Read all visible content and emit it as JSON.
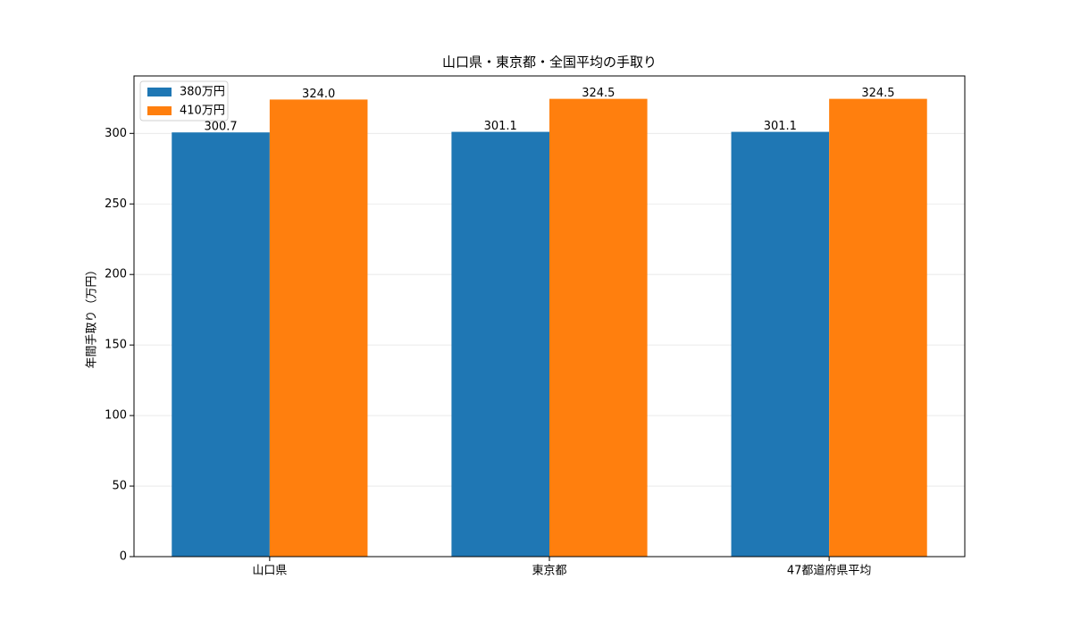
{
  "chart_data": {
    "type": "bar",
    "title": "山口県・東京都・全国平均の手取り",
    "ylabel": "年間手取り（万円）",
    "categories": [
      "山口県",
      "東京都",
      "47都道府県平均"
    ],
    "series": [
      {
        "name": "380万円",
        "color": "#1f77b4",
        "values": [
          300.7,
          301.1,
          301.1
        ]
      },
      {
        "name": "410万円",
        "color": "#ff7f0e",
        "values": [
          324.0,
          324.5,
          324.5
        ],
        "value_labels": [
          "324.0",
          "324.5",
          "324.5"
        ]
      }
    ],
    "ylim": [
      0,
      340.725
    ],
    "yticks": [
      0,
      50,
      100,
      150,
      200,
      250,
      300
    ],
    "grid": true,
    "legend": "upper-left"
  }
}
